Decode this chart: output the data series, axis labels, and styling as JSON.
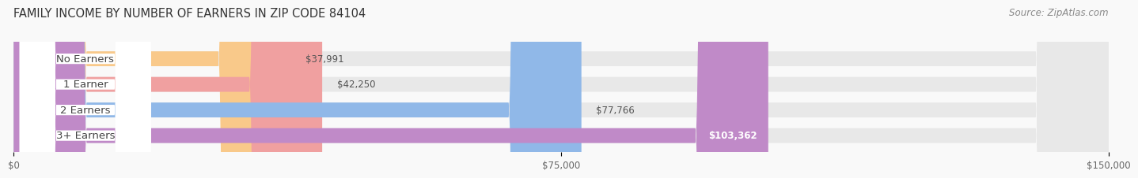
{
  "title": "FAMILY INCOME BY NUMBER OF EARNERS IN ZIP CODE 84104",
  "source": "Source: ZipAtlas.com",
  "categories": [
    "No Earners",
    "1 Earner",
    "2 Earners",
    "3+ Earners"
  ],
  "values": [
    37991,
    42250,
    77766,
    103362
  ],
  "bar_colors": [
    "#f9c98a",
    "#f0a0a0",
    "#90b8e8",
    "#c08ac8"
  ],
  "bar_bg_color": "#e8e8e8",
  "xlim": [
    0,
    150000
  ],
  "xticks": [
    0,
    75000,
    150000
  ],
  "xtick_labels": [
    "$0",
    "$75,000",
    "$150,000"
  ],
  "background_color": "#f9f9f9",
  "bar_height": 0.58,
  "title_fontsize": 10.5,
  "label_fontsize": 9.5,
  "value_fontsize": 8.5,
  "source_fontsize": 8.5
}
